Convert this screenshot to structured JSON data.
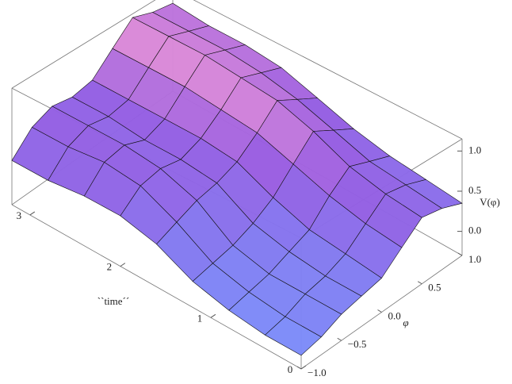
{
  "chart_data": {
    "type": "surface",
    "xlabel": "``time´´",
    "ylabel": "φ",
    "zlabel": "V(φ)",
    "x": [
      0,
      0.4,
      0.8,
      1.2,
      1.6,
      2.0,
      2.4,
      2.8,
      3.2
    ],
    "y": [
      -1,
      -0.75,
      -0.5,
      -0.25,
      0,
      0.25,
      0.5,
      0.75,
      1
    ],
    "z": [
      [
        -0.15,
        -0.1,
        0.0,
        0.05,
        0.1,
        0.3,
        0.5,
        0.45,
        0.35
      ],
      [
        -0.15,
        -0.1,
        0.0,
        0.05,
        0.15,
        0.35,
        0.55,
        0.5,
        0.4
      ],
      [
        -0.1,
        -0.05,
        0.0,
        0.1,
        0.2,
        0.45,
        0.65,
        0.55,
        0.45
      ],
      [
        0.0,
        0.05,
        0.1,
        0.2,
        0.35,
        0.6,
        0.85,
        0.7,
        0.55
      ],
      [
        0.2,
        0.3,
        0.4,
        0.45,
        0.55,
        0.75,
        1.0,
        0.85,
        0.7
      ],
      [
        0.3,
        0.5,
        0.55,
        0.5,
        0.6,
        0.8,
        1.05,
        0.95,
        0.85
      ],
      [
        0.3,
        0.55,
        0.6,
        0.5,
        0.6,
        0.85,
        1.1,
        1.0,
        0.9
      ],
      [
        0.25,
        0.5,
        0.6,
        0.55,
        0.6,
        0.85,
        1.1,
        1.0,
        0.9
      ],
      [
        0.25,
        0.5,
        0.6,
        0.55,
        0.6,
        0.85,
        1.1,
        1.0,
        0.95
      ]
    ],
    "xlim": [
      0,
      3.2
    ],
    "ylim": [
      -1,
      1
    ],
    "zlim": [
      -0.3,
      1.15
    ],
    "xticks": [
      0,
      1,
      2,
      3
    ],
    "yticks": [
      {
        "value": -1,
        "label": "−1.0"
      },
      {
        "value": -0.5,
        "label": "−0.5"
      },
      {
        "value": 0,
        "label": "0.0"
      },
      0.5,
      {
        "value": 1,
        "label": "1.0"
      }
    ],
    "zticks": [
      {
        "value": 0,
        "label": "0.0"
      },
      0.5,
      {
        "value": 1,
        "label": "1.0"
      }
    ]
  }
}
